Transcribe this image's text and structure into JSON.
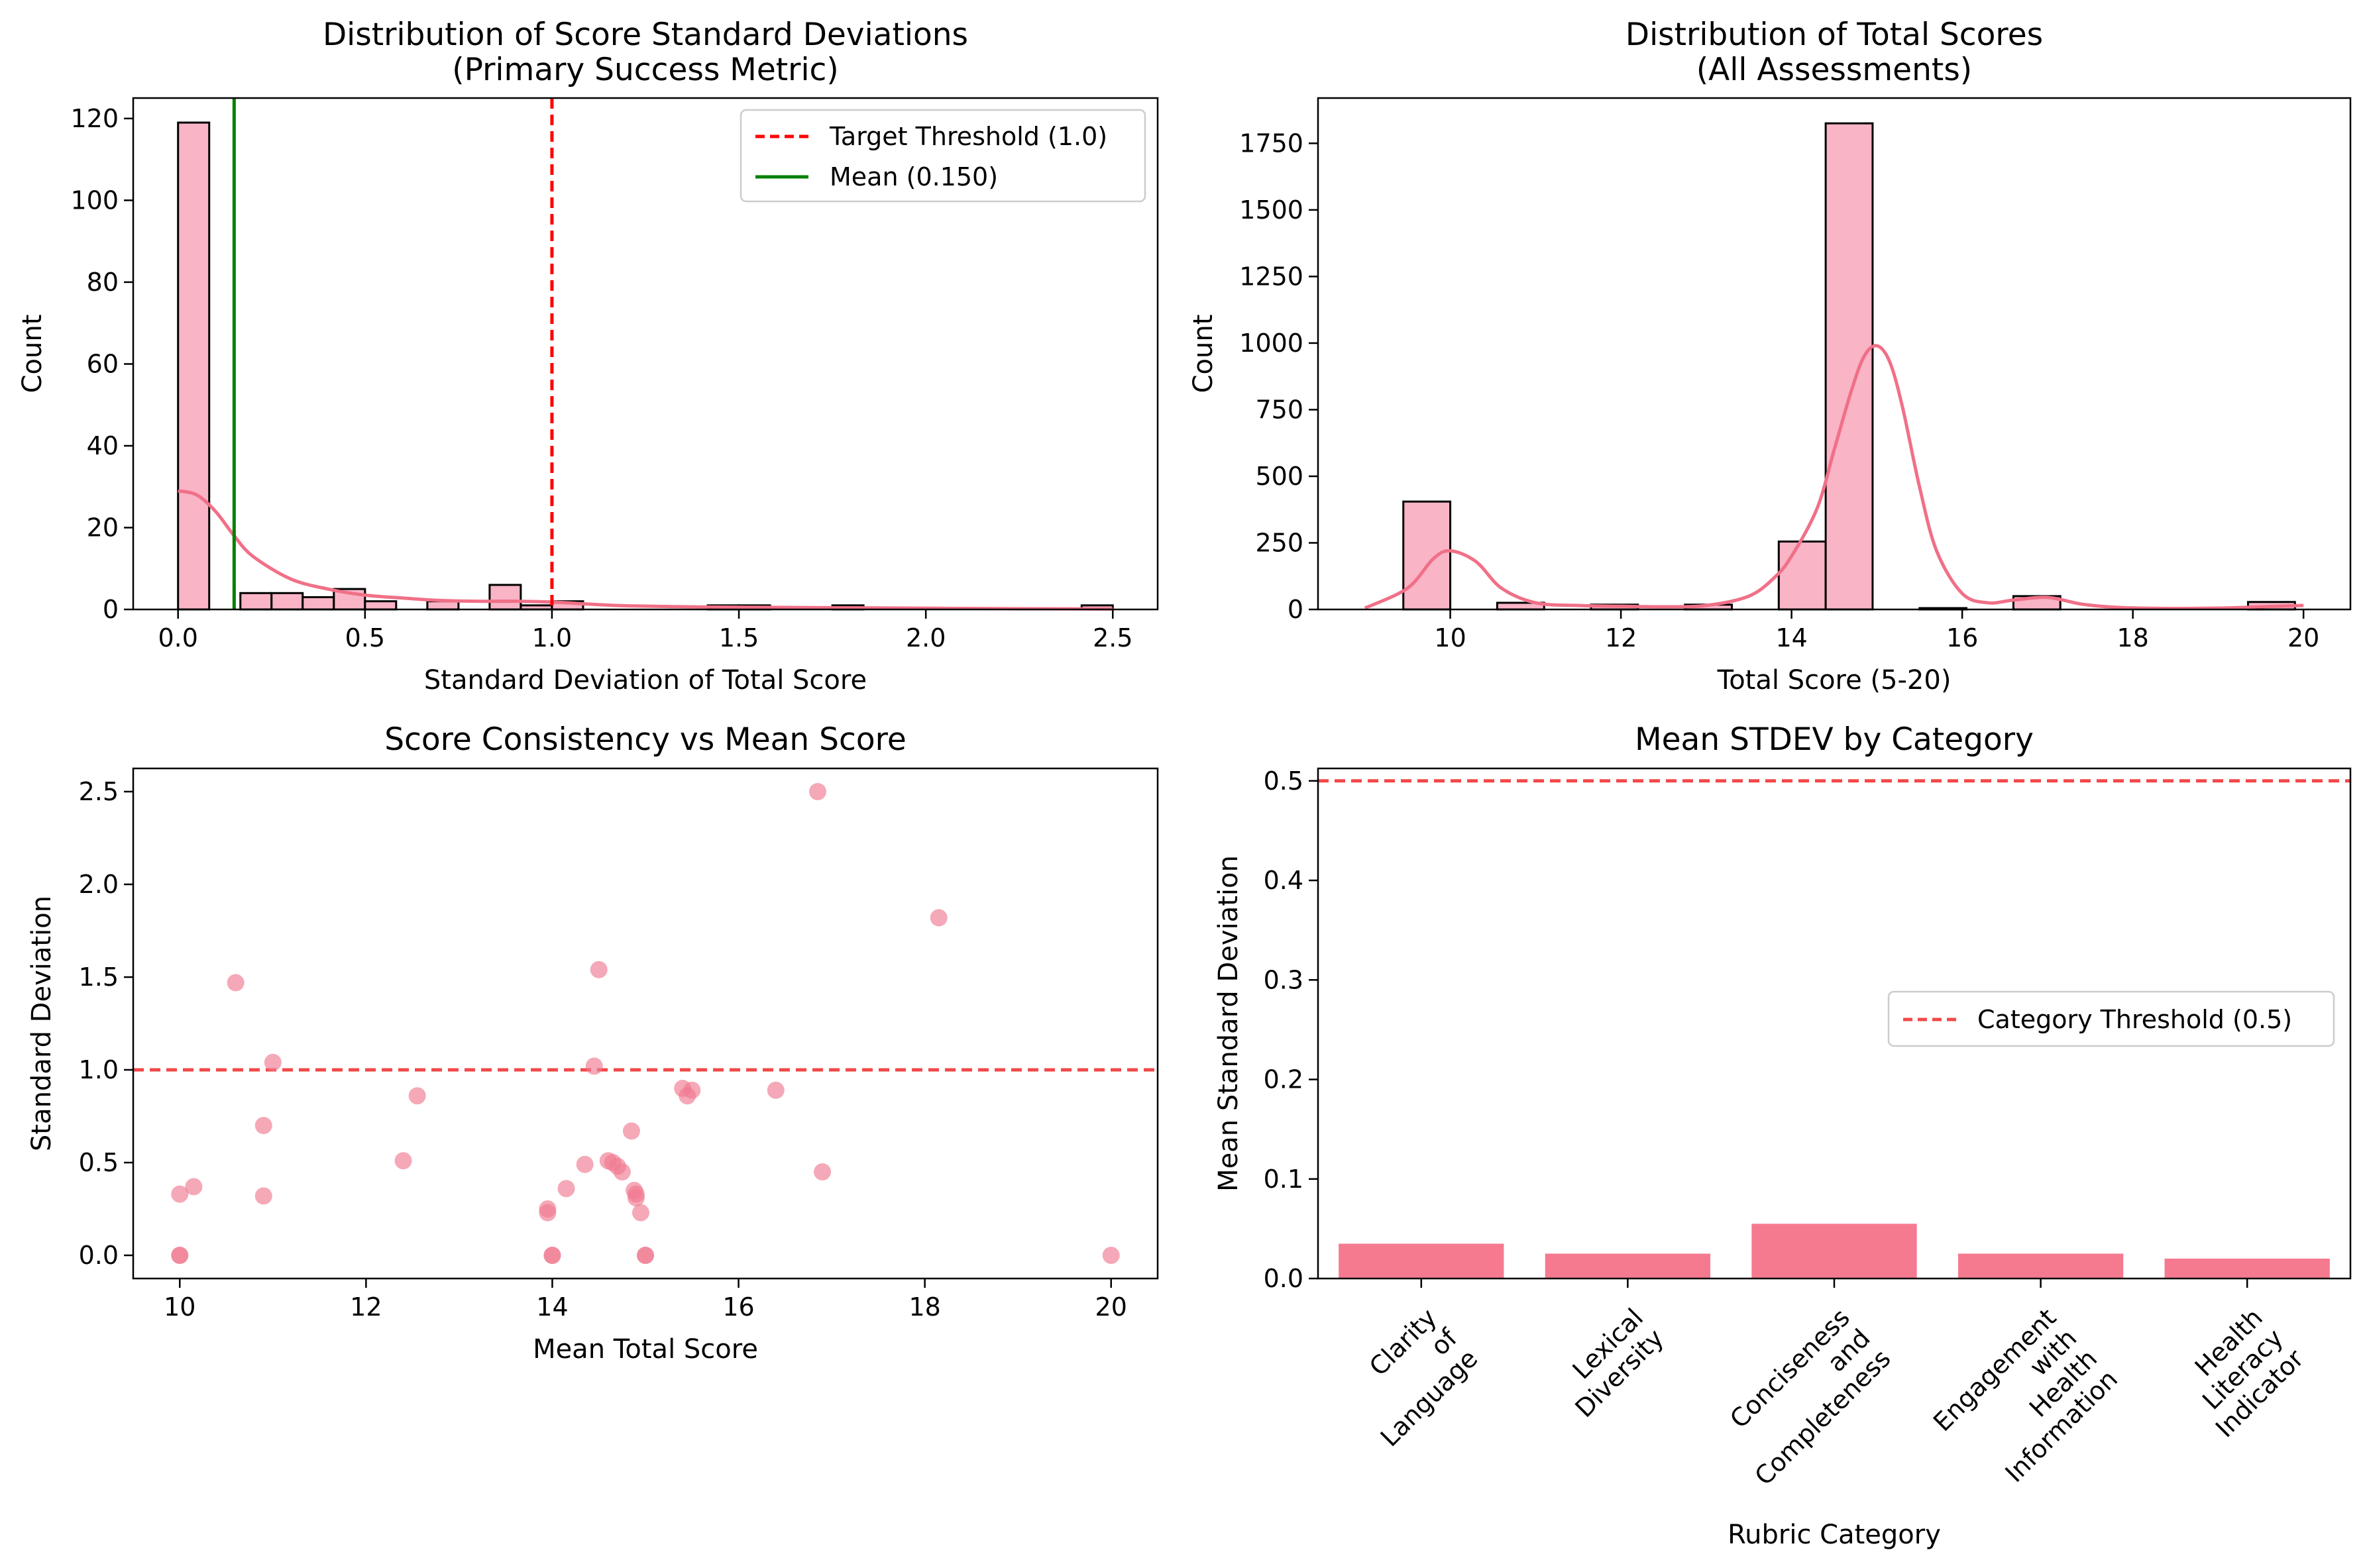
{
  "chart_data": [
    {
      "type": "histogram",
      "title": [
        "Distribution of Score Standard Deviations",
        "(Primary Success Metric)"
      ],
      "xlabel": "Standard Deviation of Total Score",
      "ylabel": "Count",
      "xlim": [
        -0.12,
        2.62
      ],
      "ylim": [
        0,
        125
      ],
      "xticks": [
        0.0,
        0.5,
        1.0,
        1.5,
        2.0,
        2.5
      ],
      "xtick_labels": [
        "0.0",
        "0.5",
        "1.0",
        "1.5",
        "2.0",
        "2.5"
      ],
      "yticks": [
        0,
        20,
        40,
        60,
        80,
        100,
        120
      ],
      "ytick_labels": [
        "0",
        "20",
        "40",
        "60",
        "80",
        "100",
        "120"
      ],
      "bin_width": 0.0833,
      "bins_start": [
        0.0,
        0.0833,
        0.1667,
        0.25,
        0.3333,
        0.4167,
        0.5,
        0.5833,
        0.6667,
        0.75,
        0.8333,
        0.9167,
        1.0,
        1.0833,
        1.1667,
        1.25,
        1.3333,
        1.4167,
        1.5,
        1.5833,
        1.6667,
        1.75,
        1.8333,
        1.9167,
        2.0,
        2.0833,
        2.1667,
        2.25,
        2.3333,
        2.4167
      ],
      "counts": [
        119,
        0,
        4,
        4,
        3,
        5,
        2,
        0,
        2,
        0,
        6,
        1,
        2,
        0,
        0,
        0,
        0,
        1,
        1,
        0,
        0,
        1,
        0,
        0,
        0,
        0,
        0,
        0,
        0,
        1
      ],
      "kde": {
        "x": [
          0.0,
          0.05,
          0.1,
          0.15,
          0.2,
          0.3,
          0.4,
          0.5,
          0.6,
          0.7,
          0.8,
          0.9,
          1.0,
          1.1,
          1.2,
          1.4,
          1.6,
          1.8,
          2.0,
          2.2,
          2.5
        ],
        "y": [
          29,
          28,
          24,
          18,
          13,
          7.5,
          5,
          3.5,
          2.8,
          2.2,
          2.0,
          2.0,
          1.8,
          1.3,
          0.9,
          0.6,
          0.5,
          0.4,
          0.3,
          0.2,
          0.1
        ]
      },
      "reference_lines": [
        {
          "orientation": "vertical",
          "value": 1.0,
          "style": "dashed",
          "color": "#ff0000",
          "label": "Target Threshold (1.0)"
        },
        {
          "orientation": "vertical",
          "value": 0.15,
          "style": "solid",
          "color": "#008000",
          "label": "Mean (0.150)"
        }
      ],
      "legend": {
        "placement": "upper-right",
        "entries": [
          "Target Threshold (1.0)",
          "Mean (0.150)"
        ]
      }
    },
    {
      "type": "histogram",
      "title": [
        "Distribution of Total Scores",
        "(All Assessments)"
      ],
      "xlabel": "Total Score (5-20)",
      "ylabel": "Count",
      "xlim": [
        8.45,
        20.55
      ],
      "ylim": [
        0,
        1920
      ],
      "xticks": [
        10,
        12,
        14,
        16,
        18,
        20
      ],
      "xtick_labels": [
        "10",
        "12",
        "14",
        "16",
        "18",
        "20"
      ],
      "yticks": [
        0,
        250,
        500,
        750,
        1000,
        1250,
        1500,
        1750
      ],
      "ytick_labels": [
        "0",
        "250",
        "500",
        "750",
        "1000",
        "1250",
        "1500",
        "1750"
      ],
      "bin_width": 0.55,
      "bins_start": [
        9.45,
        10.0,
        10.55,
        11.1,
        11.65,
        12.2,
        12.75,
        13.3,
        13.85,
        14.4,
        14.95,
        15.5,
        16.05,
        16.6,
        17.15,
        17.7,
        18.25,
        18.8,
        19.35
      ],
      "counts": [
        405,
        0,
        25,
        0,
        18,
        0,
        18,
        0,
        255,
        1825,
        0,
        5,
        0,
        50,
        0,
        0,
        0,
        0,
        28
      ],
      "kde": {
        "x": [
          9.0,
          9.5,
          9.8,
          10.0,
          10.3,
          10.6,
          11.0,
          11.5,
          12.0,
          12.5,
          13.0,
          13.5,
          13.8,
          14.0,
          14.3,
          14.5,
          14.7,
          14.85,
          15.0,
          15.15,
          15.3,
          15.5,
          15.7,
          16.0,
          16.3,
          16.6,
          17.0,
          17.4,
          17.8,
          18.3,
          19.0,
          19.5,
          20.0
        ],
        "y": [
          5,
          80,
          190,
          220,
          180,
          80,
          25,
          15,
          12,
          10,
          15,
          50,
          120,
          200,
          380,
          600,
          820,
          950,
          990,
          930,
          760,
          460,
          220,
          60,
          25,
          35,
          45,
          20,
          8,
          4,
          5,
          10,
          15
        ]
      }
    },
    {
      "type": "scatter",
      "title": "Score Consistency vs Mean Score",
      "xlabel": "Mean Total Score",
      "ylabel": "Standard Deviation",
      "xlim": [
        9.5,
        20.5
      ],
      "ylim": [
        -0.125,
        2.625
      ],
      "xticks": [
        10,
        12,
        14,
        16,
        18,
        20
      ],
      "xtick_labels": [
        "10",
        "12",
        "14",
        "16",
        "18",
        "20"
      ],
      "yticks": [
        0.0,
        0.5,
        1.0,
        1.5,
        2.0,
        2.5
      ],
      "ytick_labels": [
        "0.0",
        "0.5",
        "1.0",
        "1.5",
        "2.0",
        "2.5"
      ],
      "points": [
        [
          10.0,
          0.33
        ],
        [
          10.0,
          0.0
        ],
        [
          10.0,
          0.0
        ],
        [
          10.15,
          0.37
        ],
        [
          10.6,
          1.47
        ],
        [
          10.9,
          0.7
        ],
        [
          10.9,
          0.32
        ],
        [
          11.0,
          1.04
        ],
        [
          12.4,
          0.51
        ],
        [
          12.55,
          0.86
        ],
        [
          13.95,
          0.25
        ],
        [
          13.95,
          0.23
        ],
        [
          14.0,
          0.0
        ],
        [
          14.0,
          0.0
        ],
        [
          14.15,
          0.36
        ],
        [
          14.35,
          0.49
        ],
        [
          14.45,
          1.02
        ],
        [
          14.5,
          1.54
        ],
        [
          14.6,
          0.51
        ],
        [
          14.65,
          0.5
        ],
        [
          14.7,
          0.48
        ],
        [
          14.75,
          0.45
        ],
        [
          14.85,
          0.67
        ],
        [
          14.88,
          0.35
        ],
        [
          14.9,
          0.31
        ],
        [
          14.9,
          0.33
        ],
        [
          14.95,
          0.23
        ],
        [
          15.0,
          0.0
        ],
        [
          15.0,
          0.0
        ],
        [
          15.4,
          0.9
        ],
        [
          15.45,
          0.86
        ],
        [
          15.5,
          0.89
        ],
        [
          16.4,
          0.89
        ],
        [
          16.85,
          2.5
        ],
        [
          16.9,
          0.45
        ],
        [
          18.15,
          1.82
        ],
        [
          20.0,
          0.0
        ]
      ],
      "reference_lines": [
        {
          "orientation": "horizontal",
          "value": 1.0,
          "style": "dashed",
          "color": "#ff0000"
        }
      ]
    },
    {
      "type": "bar",
      "title": "Mean STDEV by Category",
      "xlabel": "Rubric Category",
      "ylabel": "Mean Standard Deviation",
      "ylim": [
        0,
        0.5125
      ],
      "yticks": [
        0.0,
        0.1,
        0.2,
        0.3,
        0.4,
        0.5
      ],
      "ytick_labels": [
        "0.0",
        "0.1",
        "0.2",
        "0.3",
        "0.4",
        "0.5"
      ],
      "categories": [
        "Clarity of Language",
        "Lexical Diversity",
        "Conciseness and Completeness",
        "Engagement with Health Information",
        "Health Literacy Indicator"
      ],
      "category_label_lines": [
        [
          "Clarity",
          "of",
          "Language"
        ],
        [
          "Lexical",
          "Diversity"
        ],
        [
          "Conciseness",
          "and",
          "Completeness"
        ],
        [
          "Engagement",
          "with",
          "Health",
          "Information"
        ],
        [
          "Health",
          "Literacy",
          "Indicator"
        ]
      ],
      "values": [
        0.035,
        0.025,
        0.055,
        0.025,
        0.02
      ],
      "reference_lines": [
        {
          "orientation": "horizontal",
          "value": 0.5,
          "style": "dashed",
          "color": "#ff0000",
          "label": "Category Threshold (0.5)"
        }
      ],
      "legend": {
        "placement": "center-right",
        "entries": [
          "Category Threshold (0.5)"
        ]
      }
    }
  ],
  "colors": {
    "hist_fill": "#f9b4c6",
    "hist_edge": "#000000",
    "kde_line": "#f07087",
    "scatter_point": "#f07a90",
    "bar_fill": "#f57a90",
    "threshold_red": "#ff0000",
    "threshold_soft_red": "#f24848",
    "mean_green": "#008000"
  }
}
